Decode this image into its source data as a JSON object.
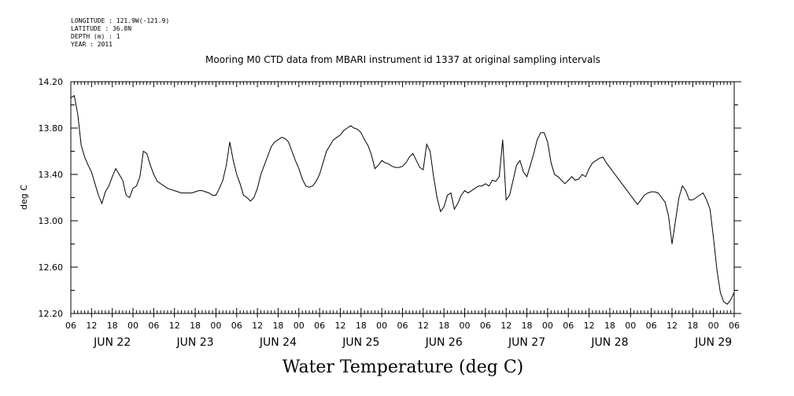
{
  "metadata": {
    "longitude": "LONGITUDE : 121.9W(-121.9)",
    "latitude": "LATITUDE : 36.8N",
    "depth": "DEPTH (m) : 1",
    "year": "YEAR : 2011"
  },
  "chart_data": {
    "type": "line",
    "title": "Mooring M0 CTD data from MBARI instrument id 1337 at original sampling intervals",
    "xlabel": "Water Temperature (deg C)",
    "ylabel": "deg C",
    "xlim": [
      "2011-06-21 06:00",
      "2011-06-29 06:00"
    ],
    "ylim": [
      12.2,
      14.2
    ],
    "y_ticks": [
      "12.20",
      "12.60",
      "13.00",
      "13.40",
      "13.80",
      "14.20"
    ],
    "x_hour_ticks": [
      "06",
      "12",
      "18",
      "00",
      "06",
      "12",
      "18",
      "00",
      "06",
      "12",
      "18",
      "00",
      "06",
      "12",
      "18",
      "00",
      "06",
      "12",
      "18",
      "00",
      "06",
      "12",
      "18",
      "00",
      "06",
      "12",
      "18",
      "00",
      "06",
      "12",
      "18",
      "00",
      "06"
    ],
    "x_day_labels": [
      "JUN 22",
      "JUN 23",
      "JUN 24",
      "JUN 25",
      "JUN 26",
      "JUN 27",
      "JUN 28",
      "JUN 29"
    ],
    "grid": false,
    "series": [
      {
        "x_hours": [
          0,
          1,
          2,
          3,
          4,
          5,
          6,
          7,
          8,
          9,
          10,
          11,
          12,
          13,
          14,
          15,
          16,
          17,
          18,
          19,
          20,
          21,
          22,
          23,
          24,
          25,
          26,
          27,
          28,
          29,
          30,
          31,
          32,
          33,
          34,
          35,
          36,
          37,
          38,
          39,
          40,
          41,
          42,
          43,
          44,
          45,
          46,
          47,
          48,
          49,
          50,
          51,
          52,
          53,
          54,
          55,
          56,
          57,
          58,
          59,
          60,
          61,
          62,
          63,
          64,
          65,
          66,
          67,
          68,
          69,
          70,
          71,
          72,
          73,
          74,
          75,
          76,
          77,
          78,
          79,
          80,
          81,
          82,
          83,
          84,
          85,
          86,
          87,
          88,
          89,
          90,
          91,
          92,
          93,
          94,
          95,
          96,
          97,
          98,
          99,
          100,
          101,
          102,
          103,
          104,
          105,
          106,
          107,
          108,
          109,
          110,
          111,
          112,
          113,
          114,
          115,
          116,
          117,
          118,
          119,
          120,
          121,
          122,
          123,
          124,
          125,
          126,
          127,
          128,
          129,
          130,
          131,
          132,
          133,
          134,
          135,
          136,
          137,
          138,
          139,
          140,
          141,
          142,
          143,
          144,
          145,
          146,
          147,
          148,
          149,
          150,
          151,
          152,
          153,
          154,
          155,
          156,
          157,
          158,
          159,
          160,
          161,
          162,
          163,
          164,
          165,
          166,
          167,
          168,
          169,
          170,
          171,
          172,
          173,
          174,
          175,
          176,
          177,
          178,
          179,
          180,
          181,
          182,
          183,
          184,
          185,
          186,
          187,
          188,
          189,
          190,
          191,
          192
        ],
        "y": [
          14.06,
          14.08,
          13.92,
          13.65,
          13.55,
          13.48,
          13.42,
          13.32,
          13.22,
          13.15,
          13.25,
          13.3,
          13.38,
          13.45,
          13.4,
          13.35,
          13.22,
          13.2,
          13.28,
          13.3,
          13.38,
          13.6,
          13.58,
          13.48,
          13.4,
          13.34,
          13.32,
          13.3,
          13.28,
          13.27,
          13.26,
          13.25,
          13.24,
          13.24,
          13.24,
          13.24,
          13.25,
          13.26,
          13.26,
          13.25,
          13.24,
          13.22,
          13.22,
          13.28,
          13.35,
          13.48,
          13.68,
          13.52,
          13.4,
          13.32,
          13.22,
          13.2,
          13.17,
          13.2,
          13.28,
          13.4,
          13.48,
          13.56,
          13.64,
          13.68,
          13.7,
          13.72,
          13.71,
          13.68,
          13.6,
          13.52,
          13.45,
          13.36,
          13.3,
          13.29,
          13.3,
          13.34,
          13.4,
          13.5,
          13.6,
          13.65,
          13.7,
          13.72,
          13.74,
          13.78,
          13.8,
          13.82,
          13.8,
          13.79,
          13.76,
          13.7,
          13.65,
          13.57,
          13.45,
          13.48,
          13.52,
          13.5,
          13.49,
          13.47,
          13.46,
          13.46,
          13.47,
          13.5,
          13.55,
          13.58,
          13.52,
          13.46,
          13.44,
          13.66,
          13.6,
          13.38,
          13.2,
          13.08,
          13.12,
          13.22,
          13.24,
          13.1,
          13.15,
          13.22,
          13.26,
          13.24,
          13.26,
          13.28,
          13.3,
          13.3,
          13.32,
          13.3,
          13.35,
          13.34,
          13.38,
          13.7,
          13.18,
          13.22,
          13.35,
          13.48,
          13.52,
          13.42,
          13.38,
          13.48,
          13.58,
          13.7,
          13.76,
          13.76,
          13.68,
          13.5,
          13.4,
          13.38,
          13.35,
          13.32,
          13.35,
          13.38,
          13.35,
          13.36,
          13.4,
          13.38,
          13.45,
          13.5,
          13.52,
          13.54,
          13.55,
          13.5,
          13.46,
          13.42,
          13.38,
          13.34,
          13.3,
          13.26,
          13.22,
          13.18,
          13.14,
          13.18,
          13.22,
          13.24,
          13.25,
          13.25,
          13.24,
          13.2,
          13.16,
          13.04,
          12.8,
          13.0,
          13.2,
          13.3,
          13.26,
          13.18,
          13.18,
          13.2,
          13.22,
          13.24,
          13.18,
          13.1,
          12.85,
          12.58,
          12.38,
          12.3,
          12.28,
          12.32,
          12.38
        ]
      }
    ]
  }
}
